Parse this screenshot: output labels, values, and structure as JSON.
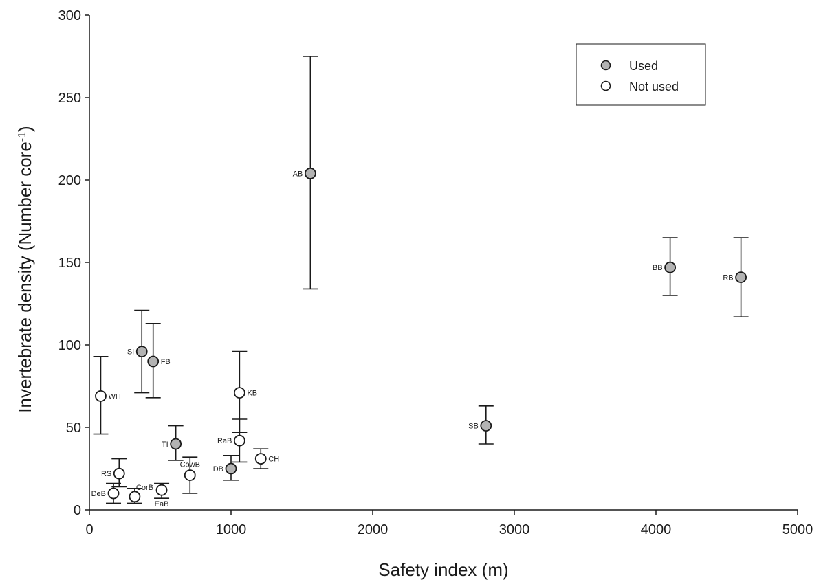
{
  "chart_data": {
    "type": "scatter",
    "xlabel": "Safety index (m)",
    "ylabel": "Invertebrate density (Number core",
    "ylabel_superscript": "-1",
    "ylabel_close": ")",
    "xlim": [
      0,
      5000
    ],
    "ylim": [
      0,
      300
    ],
    "xticks": [
      0,
      1000,
      2000,
      3000,
      4000,
      5000
    ],
    "yticks": [
      0,
      50,
      100,
      150,
      200,
      250,
      300
    ],
    "grid": false,
    "legend_position": "top-right",
    "series": [
      {
        "name": "Used",
        "fill": "#b3b3b3",
        "points": [
          {
            "label": "AB",
            "x": 1560,
            "y": 204,
            "lo": 134,
            "hi": 275
          },
          {
            "label": "BB",
            "x": 4100,
            "y": 147,
            "lo": 130,
            "hi": 165
          },
          {
            "label": "RB",
            "x": 4600,
            "y": 141,
            "lo": 117,
            "hi": 165
          },
          {
            "label": "SI",
            "x": 370,
            "y": 96,
            "lo": 71,
            "hi": 121
          },
          {
            "label": "FB",
            "x": 450,
            "y": 90,
            "lo": 68,
            "hi": 113
          },
          {
            "label": "SB",
            "x": 2800,
            "y": 51,
            "lo": 40,
            "hi": 63
          },
          {
            "label": "TI",
            "x": 610,
            "y": 40,
            "lo": 30,
            "hi": 51
          },
          {
            "label": "DB",
            "x": 1000,
            "y": 25,
            "lo": 18,
            "hi": 33
          }
        ]
      },
      {
        "name": "Not used",
        "fill": "#ffffff",
        "points": [
          {
            "label": "WH",
            "x": 80,
            "y": 69,
            "lo": 46,
            "hi": 93
          },
          {
            "label": "KB",
            "x": 1060,
            "y": 71,
            "lo": 47,
            "hi": 96
          },
          {
            "label": "RaB",
            "x": 1060,
            "y": 42,
            "lo": 29,
            "hi": 55
          },
          {
            "label": "CH",
            "x": 1210,
            "y": 31,
            "lo": 25,
            "hi": 37
          },
          {
            "label": "RS",
            "x": 210,
            "y": 22,
            "lo": 14,
            "hi": 31
          },
          {
            "label": "CowB",
            "x": 710,
            "y": 21,
            "lo": 10,
            "hi": 32
          },
          {
            "label": "EaB",
            "x": 510,
            "y": 12,
            "lo": 7,
            "hi": 16
          },
          {
            "label": "CorB",
            "x": 320,
            "y": 8,
            "lo": 4,
            "hi": 13
          },
          {
            "label": "DeB",
            "x": 170,
            "y": 10,
            "lo": 4,
            "hi": 16
          }
        ]
      }
    ]
  }
}
